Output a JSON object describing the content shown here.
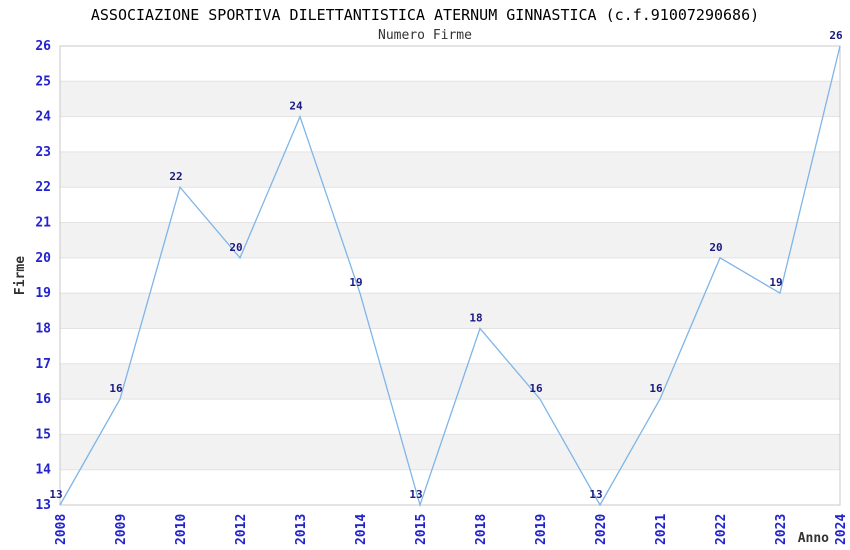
{
  "chart_data": {
    "type": "line",
    "title": "ASSOCIAZIONE SPORTIVA DILETTANTISTICA ATERNUM GINNASTICA (c.f.91007290686)",
    "subtitle": "Numero Firme",
    "xlabel": "Anno",
    "ylabel": "Firme",
    "categories": [
      "2008",
      "2009",
      "2010",
      "2012",
      "2013",
      "2014",
      "2015",
      "2018",
      "2019",
      "2020",
      "2021",
      "2022",
      "2023",
      "2024"
    ],
    "values": [
      13,
      16,
      22,
      20,
      24,
      19,
      13,
      18,
      16,
      13,
      16,
      20,
      19,
      26
    ],
    "point_labels": [
      "13",
      "16",
      "22",
      "20",
      "24",
      "19",
      "13",
      "18",
      "16",
      "13",
      "16",
      "20",
      "19",
      "26"
    ],
    "y_ticks": [
      13,
      14,
      15,
      16,
      17,
      18,
      19,
      20,
      21,
      22,
      23,
      24,
      25,
      26
    ],
    "ylim": [
      13,
      26
    ],
    "grid": "horizontal-bands-alternating",
    "legend": "none",
    "colors": {
      "line": "#7fb5e8",
      "data_label": "#1a1a80",
      "tick_label": "#2323cc",
      "axis_title": "#333333",
      "band": "#f2f2f2",
      "gridline": "#e3e3e3",
      "border": "#c8c8c8",
      "title": "#000000",
      "background": "#ffffff"
    }
  }
}
